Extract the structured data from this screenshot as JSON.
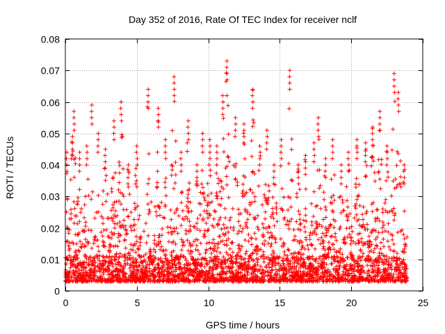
{
  "chart_data": {
    "type": "scatter",
    "title": "Day 352 of 2016, Rate Of TEC Index for receiver nclf",
    "xlabel": "GPS time / hours",
    "ylabel": "ROTI / TECUs",
    "xlim": [
      0,
      25
    ],
    "ylim": [
      0,
      0.08
    ],
    "x_ticks": [
      0,
      5,
      10,
      15,
      20,
      25
    ],
    "x_tick_labels": [
      "0",
      "5",
      "10",
      "15",
      "20",
      "25"
    ],
    "y_ticks": [
      0,
      0.01,
      0.02,
      0.03,
      0.04,
      0.05,
      0.06,
      0.07,
      0.08
    ],
    "y_tick_labels": [
      "0",
      "0.01",
      "0.02",
      "0.03",
      "0.04",
      "0.05",
      "0.06",
      "0.07",
      "0.08"
    ],
    "grid": true,
    "marker": "+",
    "marker_color": "#ff0000",
    "data_x_range": [
      0,
      23.9
    ],
    "series": [
      {
        "name": "ROTI",
        "description": "dense point cloud; baseline approx 0.003-0.015, spikes as listed",
        "peaks": [
          {
            "x": 0.1,
            "y": 0.044
          },
          {
            "x": 0.5,
            "y": 0.049
          },
          {
            "x": 0.6,
            "y": 0.057
          },
          {
            "x": 1.0,
            "y": 0.044
          },
          {
            "x": 1.5,
            "y": 0.046
          },
          {
            "x": 1.85,
            "y": 0.059
          },
          {
            "x": 2.3,
            "y": 0.05
          },
          {
            "x": 2.8,
            "y": 0.045
          },
          {
            "x": 3.4,
            "y": 0.054
          },
          {
            "x": 3.9,
            "y": 0.06
          },
          {
            "x": 4.4,
            "y": 0.04
          },
          {
            "x": 5.0,
            "y": 0.046
          },
          {
            "x": 5.8,
            "y": 0.064
          },
          {
            "x": 6.5,
            "y": 0.058
          },
          {
            "x": 7.0,
            "y": 0.048
          },
          {
            "x": 7.6,
            "y": 0.068
          },
          {
            "x": 8.1,
            "y": 0.044
          },
          {
            "x": 8.6,
            "y": 0.054
          },
          {
            "x": 9.2,
            "y": 0.04
          },
          {
            "x": 9.6,
            "y": 0.05
          },
          {
            "x": 10.1,
            "y": 0.048
          },
          {
            "x": 10.6,
            "y": 0.046
          },
          {
            "x": 11.0,
            "y": 0.062
          },
          {
            "x": 11.3,
            "y": 0.073
          },
          {
            "x": 11.9,
            "y": 0.055
          },
          {
            "x": 12.5,
            "y": 0.053
          },
          {
            "x": 13.1,
            "y": 0.064
          },
          {
            "x": 13.6,
            "y": 0.046
          },
          {
            "x": 14.1,
            "y": 0.051
          },
          {
            "x": 14.6,
            "y": 0.04
          },
          {
            "x": 15.1,
            "y": 0.048
          },
          {
            "x": 15.7,
            "y": 0.07
          },
          {
            "x": 16.3,
            "y": 0.04
          },
          {
            "x": 16.8,
            "y": 0.043
          },
          {
            "x": 17.4,
            "y": 0.047
          },
          {
            "x": 17.7,
            "y": 0.055
          },
          {
            "x": 18.2,
            "y": 0.042
          },
          {
            "x": 18.7,
            "y": 0.048
          },
          {
            "x": 19.3,
            "y": 0.04
          },
          {
            "x": 19.8,
            "y": 0.044
          },
          {
            "x": 20.4,
            "y": 0.048
          },
          {
            "x": 21.0,
            "y": 0.047
          },
          {
            "x": 21.5,
            "y": 0.052
          },
          {
            "x": 22.0,
            "y": 0.057
          },
          {
            "x": 22.5,
            "y": 0.046
          },
          {
            "x": 23.0,
            "y": 0.069
          },
          {
            "x": 23.3,
            "y": 0.063
          },
          {
            "x": 23.7,
            "y": 0.04
          }
        ]
      }
    ]
  }
}
